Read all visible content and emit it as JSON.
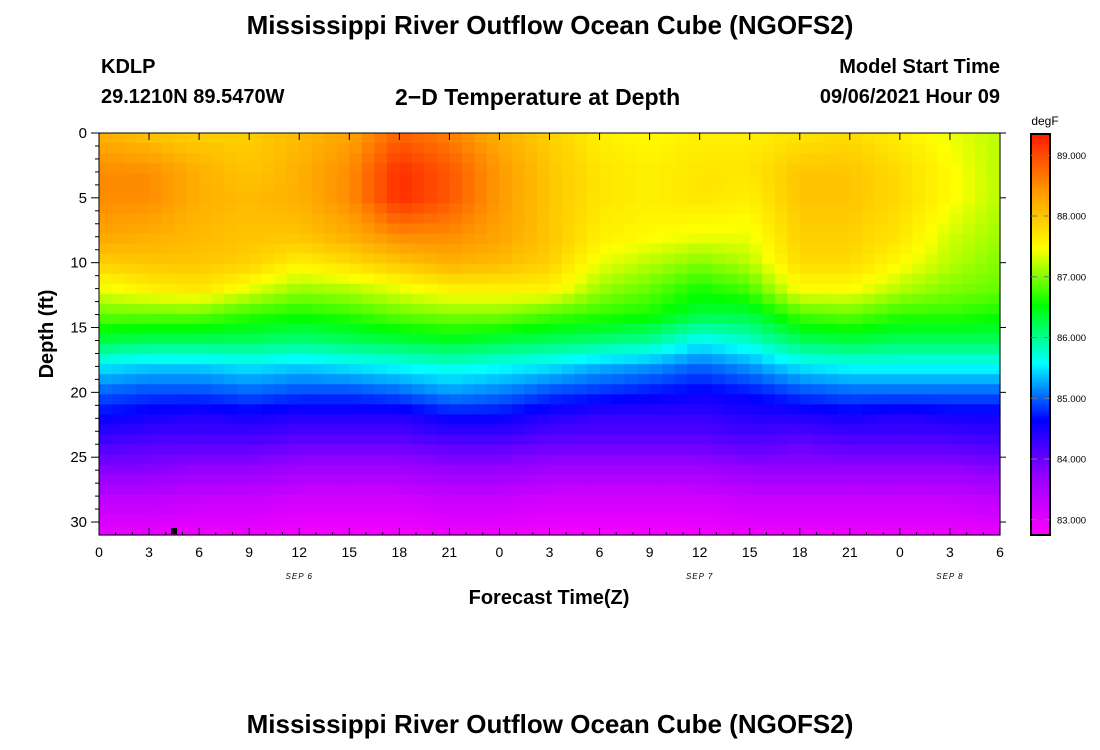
{
  "header": {
    "title": "Mississippi River Outflow Ocean Cube (NGOFS2)",
    "station_id": "KDLP",
    "station_coords": "29.1210N  89.5470W",
    "plot_title": "2−D Temperature at Depth",
    "model_start_label": "Model Start Time",
    "model_start_value": "09/06/2021 Hour 09"
  },
  "footer": {
    "title": "Mississippi River Outflow Ocean Cube (NGOFS2)"
  },
  "chart_data": {
    "type": "heatmap",
    "xlabel": "Forecast Time(Z)",
    "ylabel": "Depth (ft)",
    "xlim": [
      0,
      54
    ],
    "ylim": [
      31,
      0
    ],
    "x_tick_values": [
      0,
      3,
      6,
      9,
      12,
      15,
      18,
      21,
      24,
      27,
      30,
      33,
      36,
      39,
      42,
      45,
      48,
      51,
      54
    ],
    "x_tick_labels": [
      "0",
      "3",
      "6",
      "9",
      "12",
      "15",
      "18",
      "21",
      "0",
      "3",
      "6",
      "9",
      "12",
      "15",
      "18",
      "21",
      "0",
      "3",
      "6"
    ],
    "y_tick_values": [
      0,
      5,
      10,
      15,
      20,
      25,
      30
    ],
    "y_tick_labels": [
      "0",
      "5",
      "10",
      "15",
      "20",
      "25",
      "30"
    ],
    "date_labels": [
      {
        "x": 12,
        "text": "SEP 6"
      },
      {
        "x": 36,
        "text": "SEP 7"
      },
      {
        "x": 51,
        "text": "SEP 8"
      }
    ],
    "colorbar": {
      "unit": "degF",
      "min": 82.75,
      "max": 89.35,
      "tick_values": [
        83,
        84,
        85,
        86,
        87,
        88,
        89
      ],
      "tick_labels": [
        "83.000",
        "84.000",
        "85.000",
        "86.000",
        "87.000",
        "88.000",
        "89.000"
      ],
      "colors": [
        "#ff00ff",
        "#9900ff",
        "#0000ff",
        "#00ffff",
        "#00ff00",
        "#ffff00",
        "#ff9900",
        "#ff1a00"
      ]
    },
    "time_points": [
      0,
      3,
      6,
      9,
      12,
      15,
      18,
      21,
      24,
      27,
      30,
      33,
      36,
      39,
      42,
      45,
      48,
      51,
      54
    ],
    "depth_points": [
      0,
      3,
      5,
      8,
      10,
      12,
      14,
      16,
      18,
      20,
      22,
      24,
      26,
      28,
      31
    ],
    "values": [
      [
        88.2,
        88.0,
        87.9,
        87.9,
        88.1,
        88.3,
        88.8,
        88.6,
        88.2,
        87.9,
        87.6,
        87.5,
        87.6,
        87.6,
        87.7,
        87.8,
        87.6,
        87.4,
        87.2
      ],
      [
        88.5,
        88.5,
        88.2,
        88.0,
        88.2,
        88.5,
        89.2,
        88.9,
        88.4,
        88.0,
        87.7,
        87.6,
        87.7,
        87.7,
        88.0,
        88.0,
        87.8,
        87.5,
        87.2
      ],
      [
        88.5,
        88.5,
        88.2,
        88.1,
        88.2,
        88.5,
        89.2,
        88.9,
        88.4,
        88.0,
        87.7,
        87.6,
        87.7,
        87.6,
        88.0,
        88.0,
        87.8,
        87.5,
        87.2
      ],
      [
        88.3,
        88.2,
        88.1,
        88.0,
        88.0,
        88.2,
        88.5,
        88.5,
        88.3,
        88.0,
        87.6,
        87.5,
        87.4,
        87.4,
        87.9,
        87.9,
        87.7,
        87.3,
        87.1
      ],
      [
        87.9,
        88.0,
        88.0,
        87.9,
        87.6,
        87.8,
        88.0,
        88.2,
        88.1,
        87.9,
        87.4,
        87.2,
        87.0,
        87.2,
        87.8,
        87.8,
        87.5,
        87.2,
        87.0
      ],
      [
        87.4,
        87.6,
        87.7,
        87.4,
        87.1,
        87.2,
        87.4,
        87.6,
        87.6,
        87.6,
        87.1,
        86.9,
        86.6,
        86.8,
        87.5,
        87.5,
        87.2,
        87.0,
        86.9
      ],
      [
        86.9,
        86.9,
        86.9,
        86.7,
        86.6,
        86.7,
        86.9,
        87.0,
        87.0,
        86.8,
        86.7,
        86.6,
        86.3,
        86.3,
        86.8,
        86.9,
        86.7,
        86.7,
        86.6
      ],
      [
        86.3,
        86.2,
        86.2,
        86.2,
        86.1,
        86.2,
        86.3,
        86.4,
        86.3,
        86.2,
        86.1,
        86.0,
        85.6,
        85.8,
        86.2,
        86.3,
        86.2,
        86.2,
        86.2
      ],
      [
        85.5,
        85.4,
        85.4,
        85.5,
        85.4,
        85.5,
        85.6,
        85.7,
        85.6,
        85.5,
        85.3,
        85.2,
        85.0,
        85.2,
        85.5,
        85.6,
        85.6,
        85.6,
        85.6
      ],
      [
        85.0,
        84.9,
        84.9,
        85.0,
        84.9,
        84.9,
        85.0,
        85.2,
        85.1,
        84.9,
        84.8,
        84.7,
        84.6,
        84.7,
        84.9,
        85.0,
        85.0,
        85.0,
        85.0
      ],
      [
        84.6,
        84.5,
        84.4,
        84.5,
        84.4,
        84.4,
        84.4,
        84.6,
        84.6,
        84.4,
        84.3,
        84.3,
        84.3,
        84.4,
        84.4,
        84.5,
        84.4,
        84.5,
        84.5
      ],
      [
        84.2,
        84.1,
        84.1,
        84.1,
        84.0,
        84.0,
        84.0,
        84.1,
        84.1,
        84.0,
        84.0,
        84.0,
        84.0,
        84.1,
        84.0,
        84.1,
        84.1,
        84.1,
        84.2
      ],
      [
        83.8,
        83.8,
        83.7,
        83.7,
        83.6,
        83.6,
        83.6,
        83.7,
        83.7,
        83.6,
        83.6,
        83.6,
        83.6,
        83.7,
        83.7,
        83.7,
        83.7,
        83.7,
        83.8
      ],
      [
        83.4,
        83.4,
        83.3,
        83.3,
        83.2,
        83.2,
        83.2,
        83.3,
        83.3,
        83.2,
        83.2,
        83.2,
        83.2,
        83.3,
        83.3,
        83.3,
        83.3,
        83.3,
        83.4
      ],
      [
        82.95,
        82.95,
        82.9,
        82.9,
        82.85,
        82.85,
        82.85,
        82.9,
        82.9,
        82.85,
        82.85,
        82.85,
        82.85,
        82.9,
        82.9,
        82.9,
        82.9,
        82.9,
        82.95
      ]
    ],
    "marker": {
      "x": 4.5,
      "y": 30.7
    }
  }
}
